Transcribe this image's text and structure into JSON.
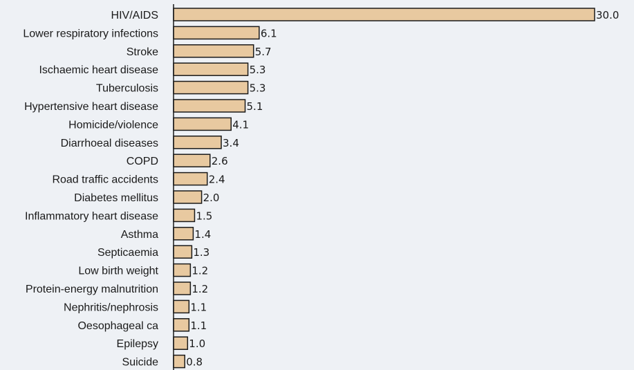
{
  "chart_data": {
    "type": "bar",
    "orientation": "horizontal",
    "title": "",
    "xlabel": "",
    "ylabel": "",
    "xlim": [
      0,
      30
    ],
    "grid": false,
    "legend": "none",
    "bar_color": "#e8c9a0",
    "bar_edge_color": "#1a1a1a",
    "background_color": "#eef1f5",
    "categories": [
      "HIV/AIDS",
      "Lower respiratory infections",
      "Stroke",
      "Ischaemic heart disease",
      "Tuberculosis",
      "Hypertensive heart disease",
      "Homicide/violence",
      "Diarrhoeal diseases",
      "COPD",
      "Road traffic accidents",
      "Diabetes mellitus",
      "Inflammatory heart disease",
      "Asthma",
      "Septicaemia",
      "Low birth weight",
      "Protein-energy malnutrition",
      "Nephritis/nephrosis",
      "Oesophageal ca",
      "Epilepsy",
      "Suicide"
    ],
    "values": [
      30.0,
      6.1,
      5.7,
      5.3,
      5.3,
      5.1,
      4.1,
      3.4,
      2.6,
      2.4,
      2.0,
      1.5,
      1.4,
      1.3,
      1.2,
      1.2,
      1.1,
      1.1,
      1.0,
      0.8
    ],
    "value_labels": [
      "30.0",
      "6.1",
      "5.7",
      "5.3",
      "5.3",
      "5.1",
      "4.1",
      "3.4",
      "2.6",
      "2.4",
      "2.0",
      "1.5",
      "1.4",
      "1.3",
      "1.2",
      "1.2",
      "1.1",
      "1.1",
      "1.0",
      "0.8"
    ]
  }
}
